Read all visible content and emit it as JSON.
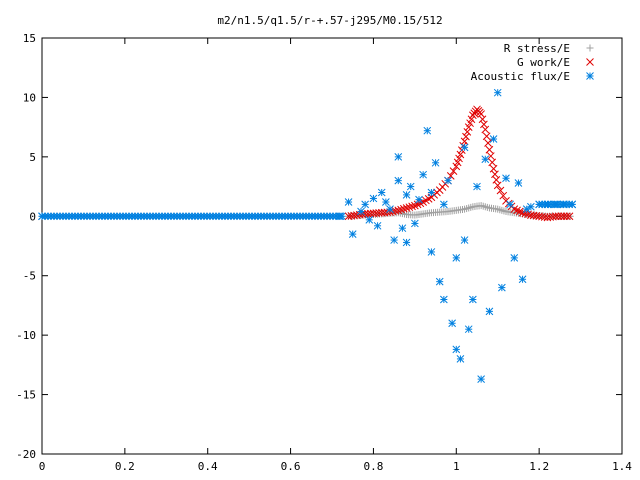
{
  "chart_data": {
    "type": "scatter",
    "title": "m2/n1.5/q1.5/r-+.57-j295/M0.15/512",
    "xlabel": "",
    "ylabel": "",
    "xlim": [
      0,
      1.4
    ],
    "ylim": [
      -20,
      15
    ],
    "x_ticks": [
      "0",
      "0.2",
      "0.4",
      "0.6",
      "0.8",
      "1",
      "1.2",
      "1.4"
    ],
    "x_tick_values": [
      0,
      0.2,
      0.4,
      0.6,
      0.8,
      1.0,
      1.2,
      1.4
    ],
    "y_ticks": [
      "15",
      "10",
      "5",
      "0",
      "-5",
      "-10",
      "-15",
      "-20"
    ],
    "y_tick_values": [
      15,
      10,
      5,
      0,
      -5,
      -10,
      -15,
      -20
    ],
    "grid": false,
    "legend_position": "top-right",
    "series": [
      {
        "name": "R stress/E",
        "marker": "plus",
        "color": "#a0a0a0",
        "x": [
          0.74,
          0.76,
          0.78,
          0.8,
          0.82,
          0.84,
          0.86,
          0.88,
          0.9,
          0.92,
          0.94,
          0.96,
          0.98,
          1.0,
          1.02,
          1.04,
          1.06,
          1.08,
          1.1,
          1.12,
          1.14,
          1.16,
          1.18,
          1.2,
          1.22,
          1.24,
          1.26,
          1.28
        ],
        "y": [
          0.0,
          0.05,
          0.1,
          0.15,
          0.2,
          0.25,
          0.3,
          0.15,
          0.1,
          0.2,
          0.3,
          0.35,
          0.4,
          0.5,
          0.6,
          0.8,
          0.9,
          0.7,
          0.6,
          0.4,
          0.3,
          0.2,
          0.1,
          0.05,
          0.0,
          0.0,
          0.0,
          0.0
        ]
      },
      {
        "name": "G work/E",
        "marker": "cross",
        "color": "#e00000",
        "x": [
          0.74,
          0.76,
          0.78,
          0.8,
          0.82,
          0.84,
          0.86,
          0.88,
          0.9,
          0.92,
          0.94,
          0.96,
          0.98,
          1.0,
          1.01,
          1.02,
          1.03,
          1.04,
          1.05,
          1.06,
          1.07,
          1.08,
          1.09,
          1.1,
          1.12,
          1.14,
          1.16,
          1.18,
          1.2,
          1.22,
          1.24,
          1.26,
          1.28
        ],
        "y": [
          0.0,
          0.1,
          0.2,
          0.25,
          0.3,
          0.35,
          0.5,
          0.7,
          0.9,
          1.2,
          1.6,
          2.2,
          3.0,
          4.2,
          5.2,
          6.3,
          7.5,
          8.5,
          9.0,
          8.6,
          7.3,
          5.6,
          4.0,
          2.6,
          1.3,
          0.6,
          0.3,
          0.1,
          0.0,
          -0.1,
          0.0,
          0.0,
          0.0
        ]
      },
      {
        "name": "Acoustic flux/E",
        "marker": "star",
        "color": "#0080e0",
        "x": [
          0.0,
          0.72,
          0.74,
          0.75,
          0.77,
          0.78,
          0.79,
          0.8,
          0.81,
          0.82,
          0.83,
          0.84,
          0.85,
          0.86,
          0.86,
          0.87,
          0.88,
          0.88,
          0.89,
          0.9,
          0.91,
          0.92,
          0.93,
          0.94,
          0.94,
          0.95,
          0.96,
          0.97,
          0.97,
          0.98,
          0.99,
          1.0,
          1.0,
          1.01,
          1.02,
          1.02,
          1.03,
          1.04,
          1.05,
          1.06,
          1.07,
          1.08,
          1.09,
          1.1,
          1.11,
          1.12,
          1.13,
          1.14,
          1.15,
          1.16,
          1.17,
          1.18,
          1.2,
          1.22,
          1.24,
          1.26,
          1.28
        ],
        "y": [
          0.0,
          0.0,
          1.2,
          -1.5,
          0.4,
          1.0,
          -0.3,
          1.5,
          -0.8,
          2.0,
          1.2,
          0.6,
          -2.0,
          3.0,
          5.0,
          -1.0,
          1.8,
          -2.2,
          2.5,
          -0.6,
          1.4,
          3.5,
          7.2,
          2.0,
          -3.0,
          4.5,
          -5.5,
          1.0,
          -7.0,
          3.0,
          -9.0,
          -11.2,
          -3.5,
          -12.0,
          -2.0,
          5.8,
          -9.5,
          -7.0,
          2.5,
          -13.7,
          4.8,
          -8.0,
          6.5,
          10.4,
          -6.0,
          3.2,
          1.0,
          -3.5,
          2.8,
          -5.3,
          0.6,
          0.8,
          1.0,
          1.0,
          1.0,
          1.0,
          1.0
        ]
      }
    ]
  }
}
